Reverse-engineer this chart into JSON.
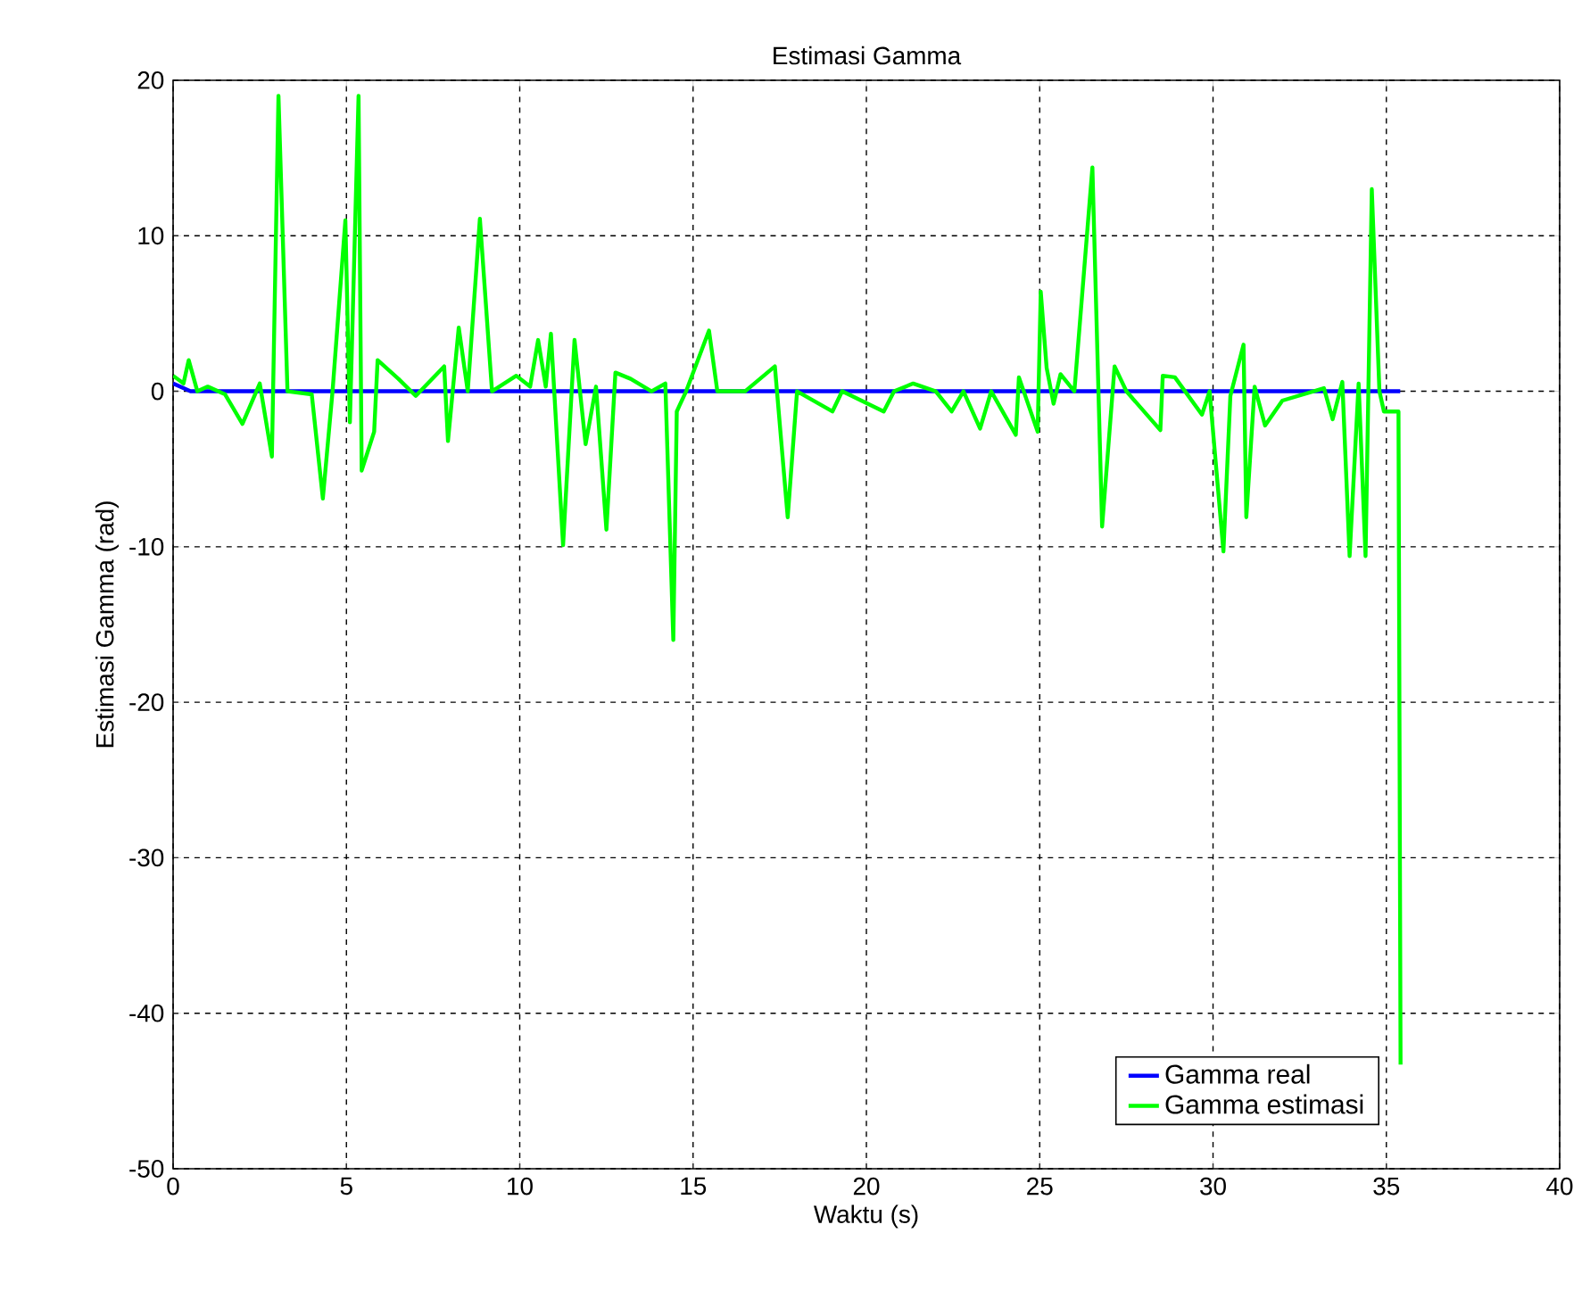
{
  "chart_data": {
    "type": "line",
    "title": "Estimasi Gamma",
    "xlabel": "Waktu (s)",
    "ylabel": "Estimasi Gamma (rad)",
    "xlim": [
      0,
      40
    ],
    "ylim": [
      -50,
      20
    ],
    "xticks": [
      0,
      5,
      10,
      15,
      20,
      25,
      30,
      35,
      40
    ],
    "yticks": [
      -50,
      -40,
      -30,
      -20,
      -10,
      0,
      10,
      20
    ],
    "grid": true,
    "legend": "bottom right",
    "marker": "none",
    "line_style": "solid",
    "series": [
      {
        "name": "Gamma real",
        "color": "#0000ff",
        "x": [
          0,
          0.5,
          35.4
        ],
        "values": [
          0.5,
          0,
          0
        ]
      },
      {
        "name": "Gamma estimasi",
        "color": "#00ff00",
        "x": [
          0,
          0.3,
          0.45,
          0.7,
          1.0,
          1.5,
          2.0,
          2.5,
          2.85,
          3.04,
          3.3,
          4.0,
          4.32,
          4.6,
          4.97,
          5.1,
          5.35,
          5.44,
          5.8,
          5.9,
          6.5,
          7.0,
          7.82,
          7.93,
          8.24,
          8.5,
          8.85,
          9.2,
          9.9,
          10.3,
          10.53,
          10.75,
          10.9,
          11.25,
          11.58,
          11.9,
          12.2,
          12.5,
          12.76,
          13.2,
          13.8,
          14.2,
          14.43,
          14.53,
          14.8,
          15.46,
          15.7,
          16.5,
          17.36,
          17.73,
          18.0,
          19.02,
          19.3,
          20.5,
          20.8,
          21.35,
          22.0,
          22.46,
          22.8,
          23.28,
          23.6,
          24.31,
          24.4,
          24.94,
          25.03,
          25.2,
          25.4,
          25.6,
          26.0,
          26.52,
          26.8,
          27.16,
          27.5,
          28.48,
          28.55,
          28.9,
          29.68,
          29.9,
          30.3,
          30.5,
          30.88,
          30.96,
          31.2,
          31.5,
          32.0,
          33.2,
          33.45,
          33.73,
          33.94,
          34.2,
          34.4,
          34.58,
          34.8,
          34.93,
          35.35,
          35.41
        ],
        "values": [
          1,
          0.5,
          2,
          0,
          0.3,
          -0.2,
          -2.1,
          0.5,
          -4.2,
          19,
          0,
          -0.2,
          -6.9,
          0,
          11,
          -2,
          19,
          -5.1,
          -2.6,
          2,
          0.8,
          -0.3,
          1.6,
          -3.2,
          4.1,
          0,
          11.1,
          0,
          1,
          0.3,
          3.3,
          0.3,
          3.7,
          -9.9,
          3.3,
          -3.4,
          0.3,
          -8.9,
          1.2,
          0.8,
          0,
          0.5,
          -16,
          -1.3,
          0,
          3.9,
          0,
          0,
          1.6,
          -8.1,
          0,
          -1.3,
          0,
          -1.3,
          0,
          0.5,
          0,
          -1.3,
          0,
          -2.4,
          0,
          -2.8,
          0.9,
          -2.6,
          6.4,
          1.5,
          -0.8,
          1.1,
          0,
          14.4,
          -8.7,
          1.6,
          0,
          -2.5,
          1,
          0.9,
          -1.5,
          0,
          -10.3,
          -0.3,
          3,
          -8.1,
          0.3,
          -2.2,
          -0.6,
          0.2,
          -1.8,
          0.6,
          -10.6,
          0.5,
          -10.6,
          13,
          0,
          -1.3,
          -1.3,
          -43.3
        ]
      }
    ]
  }
}
